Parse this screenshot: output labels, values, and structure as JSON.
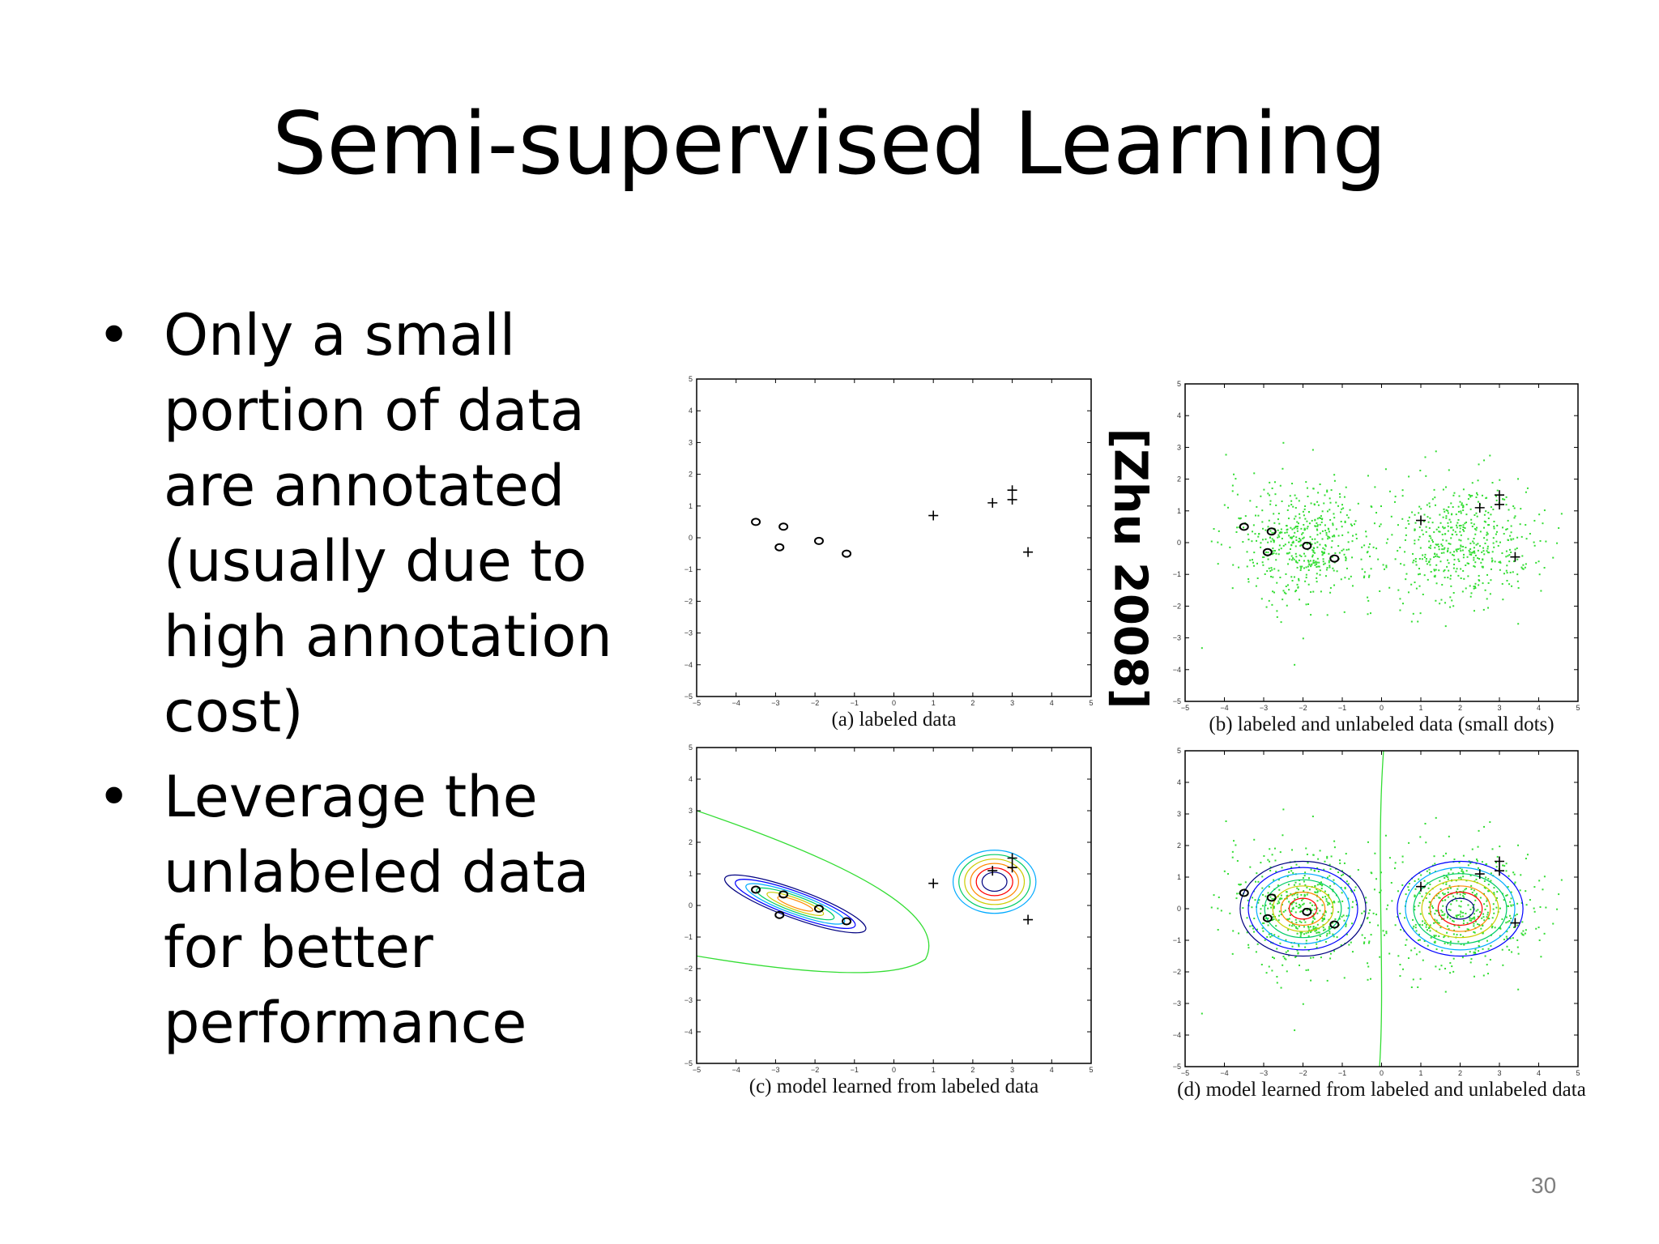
{
  "slide": {
    "title": "Semi-supervised Learning",
    "bullets": [
      {
        "lines": [
          "Only a small",
          "portion of data",
          "are annotated",
          "(usually due to",
          "high annotation",
          "cost)"
        ]
      },
      {
        "lines": [
          "Leverage the",
          "unlabeled data",
          "for better",
          "performance"
        ]
      }
    ],
    "citation": "[Zhu 2008]",
    "page_number": "30"
  },
  "figure": {
    "colors": {
      "axes": "#000000",
      "unlabeled_dots": "#33dd33",
      "contours": [
        "#000080",
        "#0000ff",
        "#00aaff",
        "#00cc66",
        "#cccc00",
        "#ff8800",
        "#ff0000"
      ]
    },
    "tick_values": [
      -5,
      -4,
      -3,
      -2,
      -1,
      0,
      1,
      2,
      3,
      4,
      5
    ],
    "labeled_negative": [
      [
        -3.5,
        0.5
      ],
      [
        -2.8,
        0.35
      ],
      [
        -2.9,
        -0.3
      ],
      [
        -1.9,
        -0.1
      ],
      [
        -1.2,
        -0.5
      ]
    ],
    "labeled_positive": [
      [
        1.0,
        0.7
      ],
      [
        2.5,
        1.1
      ],
      [
        3.0,
        1.5
      ],
      [
        3.0,
        1.2
      ],
      [
        3.4,
        -0.45
      ]
    ],
    "unlabeled_clusters": [
      {
        "center": [
          -2,
          0
        ],
        "spread": 0.95
      },
      {
        "center": [
          2,
          0
        ],
        "spread": 0.95
      }
    ],
    "panels": [
      {
        "id": "a",
        "caption": "(a) labeled data",
        "unlabeled": false,
        "model": "none"
      },
      {
        "id": "b",
        "caption": "(b) labeled and unlabeled data (small dots)",
        "unlabeled": true,
        "model": "none"
      },
      {
        "id": "c",
        "caption": "(c) model learned from labeled data",
        "unlabeled": false,
        "model": "labeled"
      },
      {
        "id": "d",
        "caption": "(d) model learned from labeled and unlabeled data",
        "unlabeled": true,
        "model": "semi"
      }
    ]
  }
}
